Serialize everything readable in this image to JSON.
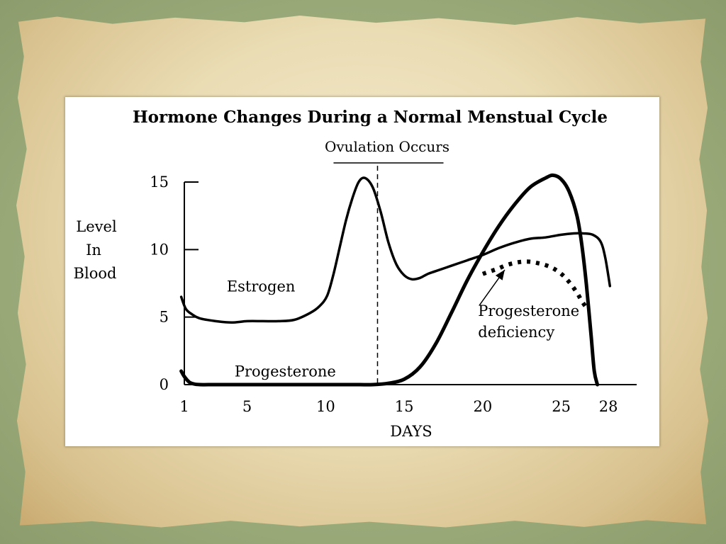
{
  "chart_data": {
    "type": "line",
    "title": "Hormone Changes During a Normal Menstual Cycle",
    "xlabel": "DAYS",
    "ylabel_lines": [
      "Level",
      "In",
      "Blood"
    ],
    "x_ticks": [
      "1",
      "5",
      "10",
      "15",
      "20",
      "25",
      "28"
    ],
    "x_tick_values": [
      1,
      5,
      10,
      15,
      20,
      25,
      28
    ],
    "y_ticks": [
      "0",
      "5",
      "10",
      "15"
    ],
    "y_tick_values": [
      0,
      5,
      10,
      15
    ],
    "xlim": [
      1,
      29.8
    ],
    "ylim": [
      0,
      15
    ],
    "ovulation": {
      "label": "Ovulation Occurs",
      "day": 13.3,
      "bracket": [
        10.5,
        17.5
      ]
    },
    "series": [
      {
        "name": "Estrogen",
        "style": "solid-medium",
        "label_at": [
          3.7,
          6.9
        ],
        "x": [
          0.8,
          1.1,
          1.5,
          2,
          3,
          4,
          5,
          6,
          7,
          8,
          9,
          9.6,
          10.1,
          10.5,
          10.9,
          11.3,
          11.7,
          12.1,
          12.5,
          13,
          13.5,
          14,
          14.5,
          15,
          15.5,
          16,
          16.5,
          17,
          18,
          19,
          20,
          21,
          22,
          23,
          24,
          25,
          25.8,
          26.4,
          27,
          27.5,
          27.8,
          28.1
        ],
        "y": [
          6.5,
          5.6,
          5.2,
          4.9,
          4.7,
          4.6,
          4.7,
          4.7,
          4.7,
          4.8,
          5.3,
          5.8,
          6.6,
          8.2,
          10.2,
          12.2,
          13.8,
          15.0,
          15.3,
          14.6,
          12.8,
          10.5,
          8.9,
          8.1,
          7.8,
          7.9,
          8.2,
          8.4,
          8.8,
          9.2,
          9.6,
          10.1,
          10.5,
          10.8,
          10.9,
          11.1,
          11.2,
          11.2,
          11.1,
          10.6,
          9.4,
          7.3
        ]
      },
      {
        "name": "Progesterone",
        "style": "solid-bold",
        "label_at": [
          4.2,
          0.6
        ],
        "x": [
          0.8,
          1.0,
          1.3,
          1.6,
          2,
          3,
          5,
          8,
          10,
          12,
          13,
          14,
          15,
          16,
          17,
          18,
          19,
          20,
          21,
          22,
          23,
          24,
          24.5,
          25,
          25.5,
          26,
          26.3,
          26.6,
          26.9,
          27.1,
          27.3
        ],
        "y": [
          1.0,
          0.6,
          0.2,
          0.05,
          0,
          0,
          0,
          0,
          0,
          0,
          0,
          0.1,
          0.4,
          1.3,
          3.0,
          5.3,
          7.7,
          9.8,
          11.7,
          13.3,
          14.6,
          15.3,
          15.5,
          15.2,
          14.3,
          12.5,
          10.4,
          7.4,
          3.6,
          1.0,
          0
        ]
      },
      {
        "name": "Progesterone deficiency",
        "style": "dotted-bold",
        "label_lines": [
          "Progesterone",
          "deficiency"
        ],
        "label_at": [
          19.7,
          5.1
        ],
        "x": [
          20,
          20.5,
          21,
          21.5,
          22,
          22.5,
          23,
          23.5,
          24,
          24.5,
          25,
          25.5,
          26,
          26.3,
          26.6
        ],
        "y": [
          8.2,
          8.4,
          8.6,
          8.85,
          9.0,
          9.1,
          9.1,
          9.0,
          8.85,
          8.6,
          8.2,
          7.6,
          6.8,
          6.2,
          5.7
        ]
      }
    ],
    "arrow": {
      "from": [
        19.8,
        5.9
      ],
      "to": [
        21.4,
        8.5
      ]
    },
    "grid": false,
    "legend": "none"
  }
}
